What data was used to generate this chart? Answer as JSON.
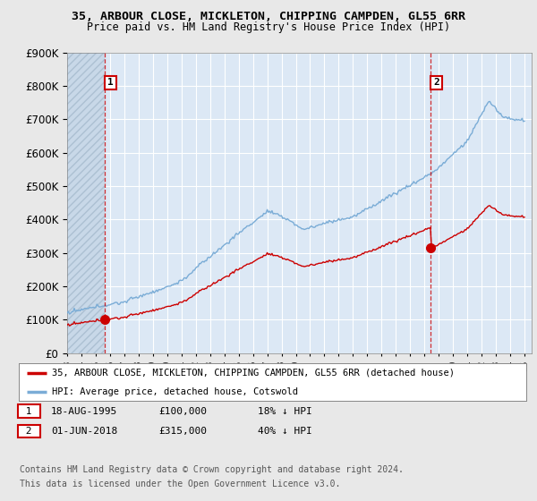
{
  "title1": "35, ARBOUR CLOSE, MICKLETON, CHIPPING CAMPDEN, GL55 6RR",
  "title2": "Price paid vs. HM Land Registry's House Price Index (HPI)",
  "legend_label1": "35, ARBOUR CLOSE, MICKLETON, CHIPPING CAMPDEN, GL55 6RR (detached house)",
  "legend_label2": "HPI: Average price, detached house, Cotswold",
  "sale1_price": 100000,
  "sale1_label": "18-AUG-1995",
  "sale1_pct": "18% ↓ HPI",
  "sale2_price": 315000,
  "sale2_label": "01-JUN-2018",
  "sale2_pct": "40% ↓ HPI",
  "annotation1": "1",
  "annotation2": "2",
  "footer1": "Contains HM Land Registry data © Crown copyright and database right 2024.",
  "footer2": "This data is licensed under the Open Government Licence v3.0.",
  "ymax": 900000,
  "line_color_red": "#cc0000",
  "line_color_blue": "#7aacd6",
  "bg_color": "#e8e8e8",
  "plot_bg": "#dce8f5",
  "hatch_color": "#c8d8e8"
}
